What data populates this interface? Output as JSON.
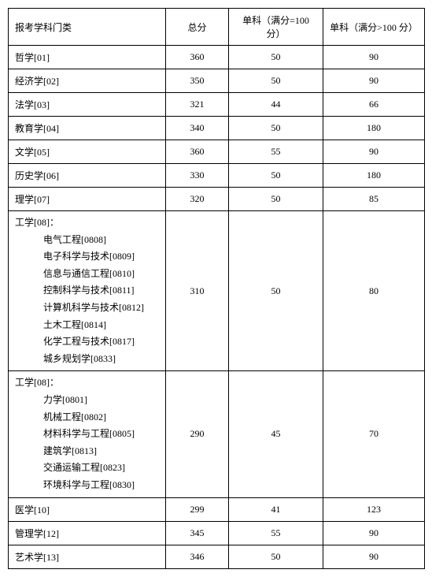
{
  "header": {
    "category": "报考学科门类",
    "total": "总分",
    "sub1": "单科（满分=100 分）",
    "sub2": "单科（满分>100 分）"
  },
  "rows": [
    {
      "category": "哲学[01]",
      "total": "360",
      "sub1": "50",
      "sub2": "90",
      "multi": false
    },
    {
      "category": "经济学[02]",
      "total": "350",
      "sub1": "50",
      "sub2": "90",
      "multi": false
    },
    {
      "category": "法学[03]",
      "total": "321",
      "sub1": "44",
      "sub2": "66",
      "multi": false
    },
    {
      "category": "教育学[04]",
      "total": "340",
      "sub1": "50",
      "sub2": "180",
      "multi": false
    },
    {
      "category": "文学[05]",
      "total": "360",
      "sub1": "55",
      "sub2": "90",
      "multi": false
    },
    {
      "category": "历史学[06]",
      "total": "330",
      "sub1": "50",
      "sub2": "180",
      "multi": false
    },
    {
      "category": "理学[07]",
      "total": "320",
      "sub1": "50",
      "sub2": "85",
      "multi": false
    },
    {
      "header_line": "工学[08]：",
      "sub_lines": [
        "电气工程[0808]",
        "电子科学与技术[0809]",
        "信息与通信工程[0810]",
        "控制科学与技术[0811]",
        "计算机科学与技术[0812]",
        "土木工程[0814]",
        "化学工程与技术[0817]",
        "城乡规划学[0833]"
      ],
      "total": "310",
      "sub1": "50",
      "sub2": "80",
      "multi": true
    },
    {
      "header_line": "工学[08]：",
      "sub_lines": [
        "力学[0801]",
        "机械工程[0802]",
        "材料科学与工程[0805]",
        "建筑学[0813]",
        "交通运输工程[0823]",
        "环境科学与工程[0830]"
      ],
      "total": "290",
      "sub1": "45",
      "sub2": "70",
      "multi": true
    },
    {
      "category": "医学[10]",
      "total": "299",
      "sub1": "41",
      "sub2": "123",
      "multi": false
    },
    {
      "category": "管理学[12]",
      "total": "345",
      "sub1": "55",
      "sub2": "90",
      "multi": false
    },
    {
      "category": "艺术学[13]",
      "total": "346",
      "sub1": "50",
      "sub2": "90",
      "multi": false
    }
  ]
}
